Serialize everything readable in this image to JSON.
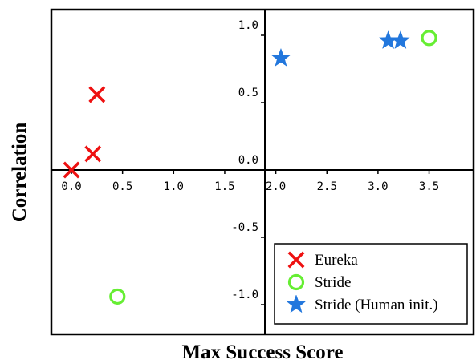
{
  "chart_data": {
    "type": "scatter",
    "xlabel": "Max Success Score",
    "ylabel": "Correlation",
    "xlim": [
      -0.15,
      3.9
    ],
    "ylim": [
      -1.18,
      1.18
    ],
    "x_ticks": [
      "0.0",
      "0.5",
      "1.0",
      "1.5",
      "2.0",
      "2.5",
      "3.0",
      "3.5"
    ],
    "y_ticks": [
      "-1.0",
      "-0.5",
      "0.0",
      "0.5",
      "1.0"
    ],
    "legend_position": "bottom-right",
    "grid": false,
    "series": [
      {
        "name": "Eureka",
        "marker": "x",
        "color": "#ee1111",
        "points": [
          {
            "x": 0.0,
            "y": 0.0
          },
          {
            "x": 0.21,
            "y": 0.12
          },
          {
            "x": 0.25,
            "y": 0.56
          }
        ]
      },
      {
        "name": "Stride",
        "marker": "circle",
        "color": "#66ee33",
        "points": [
          {
            "x": 3.5,
            "y": 0.98
          },
          {
            "x": 0.45,
            "y": -0.94
          }
        ]
      },
      {
        "name": "Stride (Human init.)",
        "marker": "star",
        "color": "#2277dd",
        "points": [
          {
            "x": 2.05,
            "y": 0.83
          },
          {
            "x": 3.1,
            "y": 0.96
          },
          {
            "x": 3.22,
            "y": 0.96
          }
        ]
      }
    ]
  }
}
